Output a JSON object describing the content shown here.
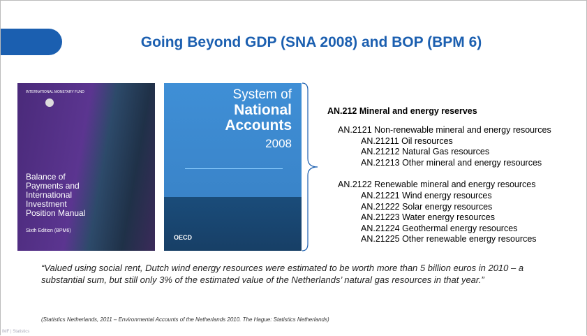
{
  "header": {
    "title": "Going Beyond GDP (SNA 2008) and BOP (BPM 6)"
  },
  "books": [
    {
      "publisher": "INTERNATIONAL MONETARY FUND",
      "title_lines": [
        "Balance of",
        "Payments and",
        "International",
        "Investment",
        "Position Manual"
      ],
      "edition": "Sixth Edition (BPM6)"
    },
    {
      "title_lines": [
        "System of",
        "National",
        "Accounts",
        "2008"
      ],
      "logo": "OECD"
    }
  ],
  "reserves": {
    "heading": "AN.212 Mineral and energy reserves",
    "groups": [
      {
        "label": "AN.2121 Non-renewable mineral and energy resources",
        "items": [
          "AN.21211 Oil resources",
          "AN.21212 Natural Gas resources",
          "AN.21213 Other mineral and energy resources"
        ]
      },
      {
        "label": "AN.2122 Renewable mineral and energy resources",
        "items": [
          "AN.21221 Wind energy resources",
          "AN.21222 Solar energy resources",
          "AN.21223 Water energy resources",
          "AN.21224 Geothermal energy resources",
          "AN.21225 Other renewable energy resources"
        ]
      }
    ]
  },
  "quote": "“Valued using social rent, Dutch wind energy resources were estimated to be worth more than 5 billion euros in 2010 – a substantial sum, but still only 3% of the estimated value of the Netherlands’ natural gas resources in that year.”",
  "citation": "(Statistics Netherlands, 2011 – Environmental Accounts of the Netherlands 2010.  The Hague: Statistics Netherlands)",
  "footer": "IMF | Statistics"
}
